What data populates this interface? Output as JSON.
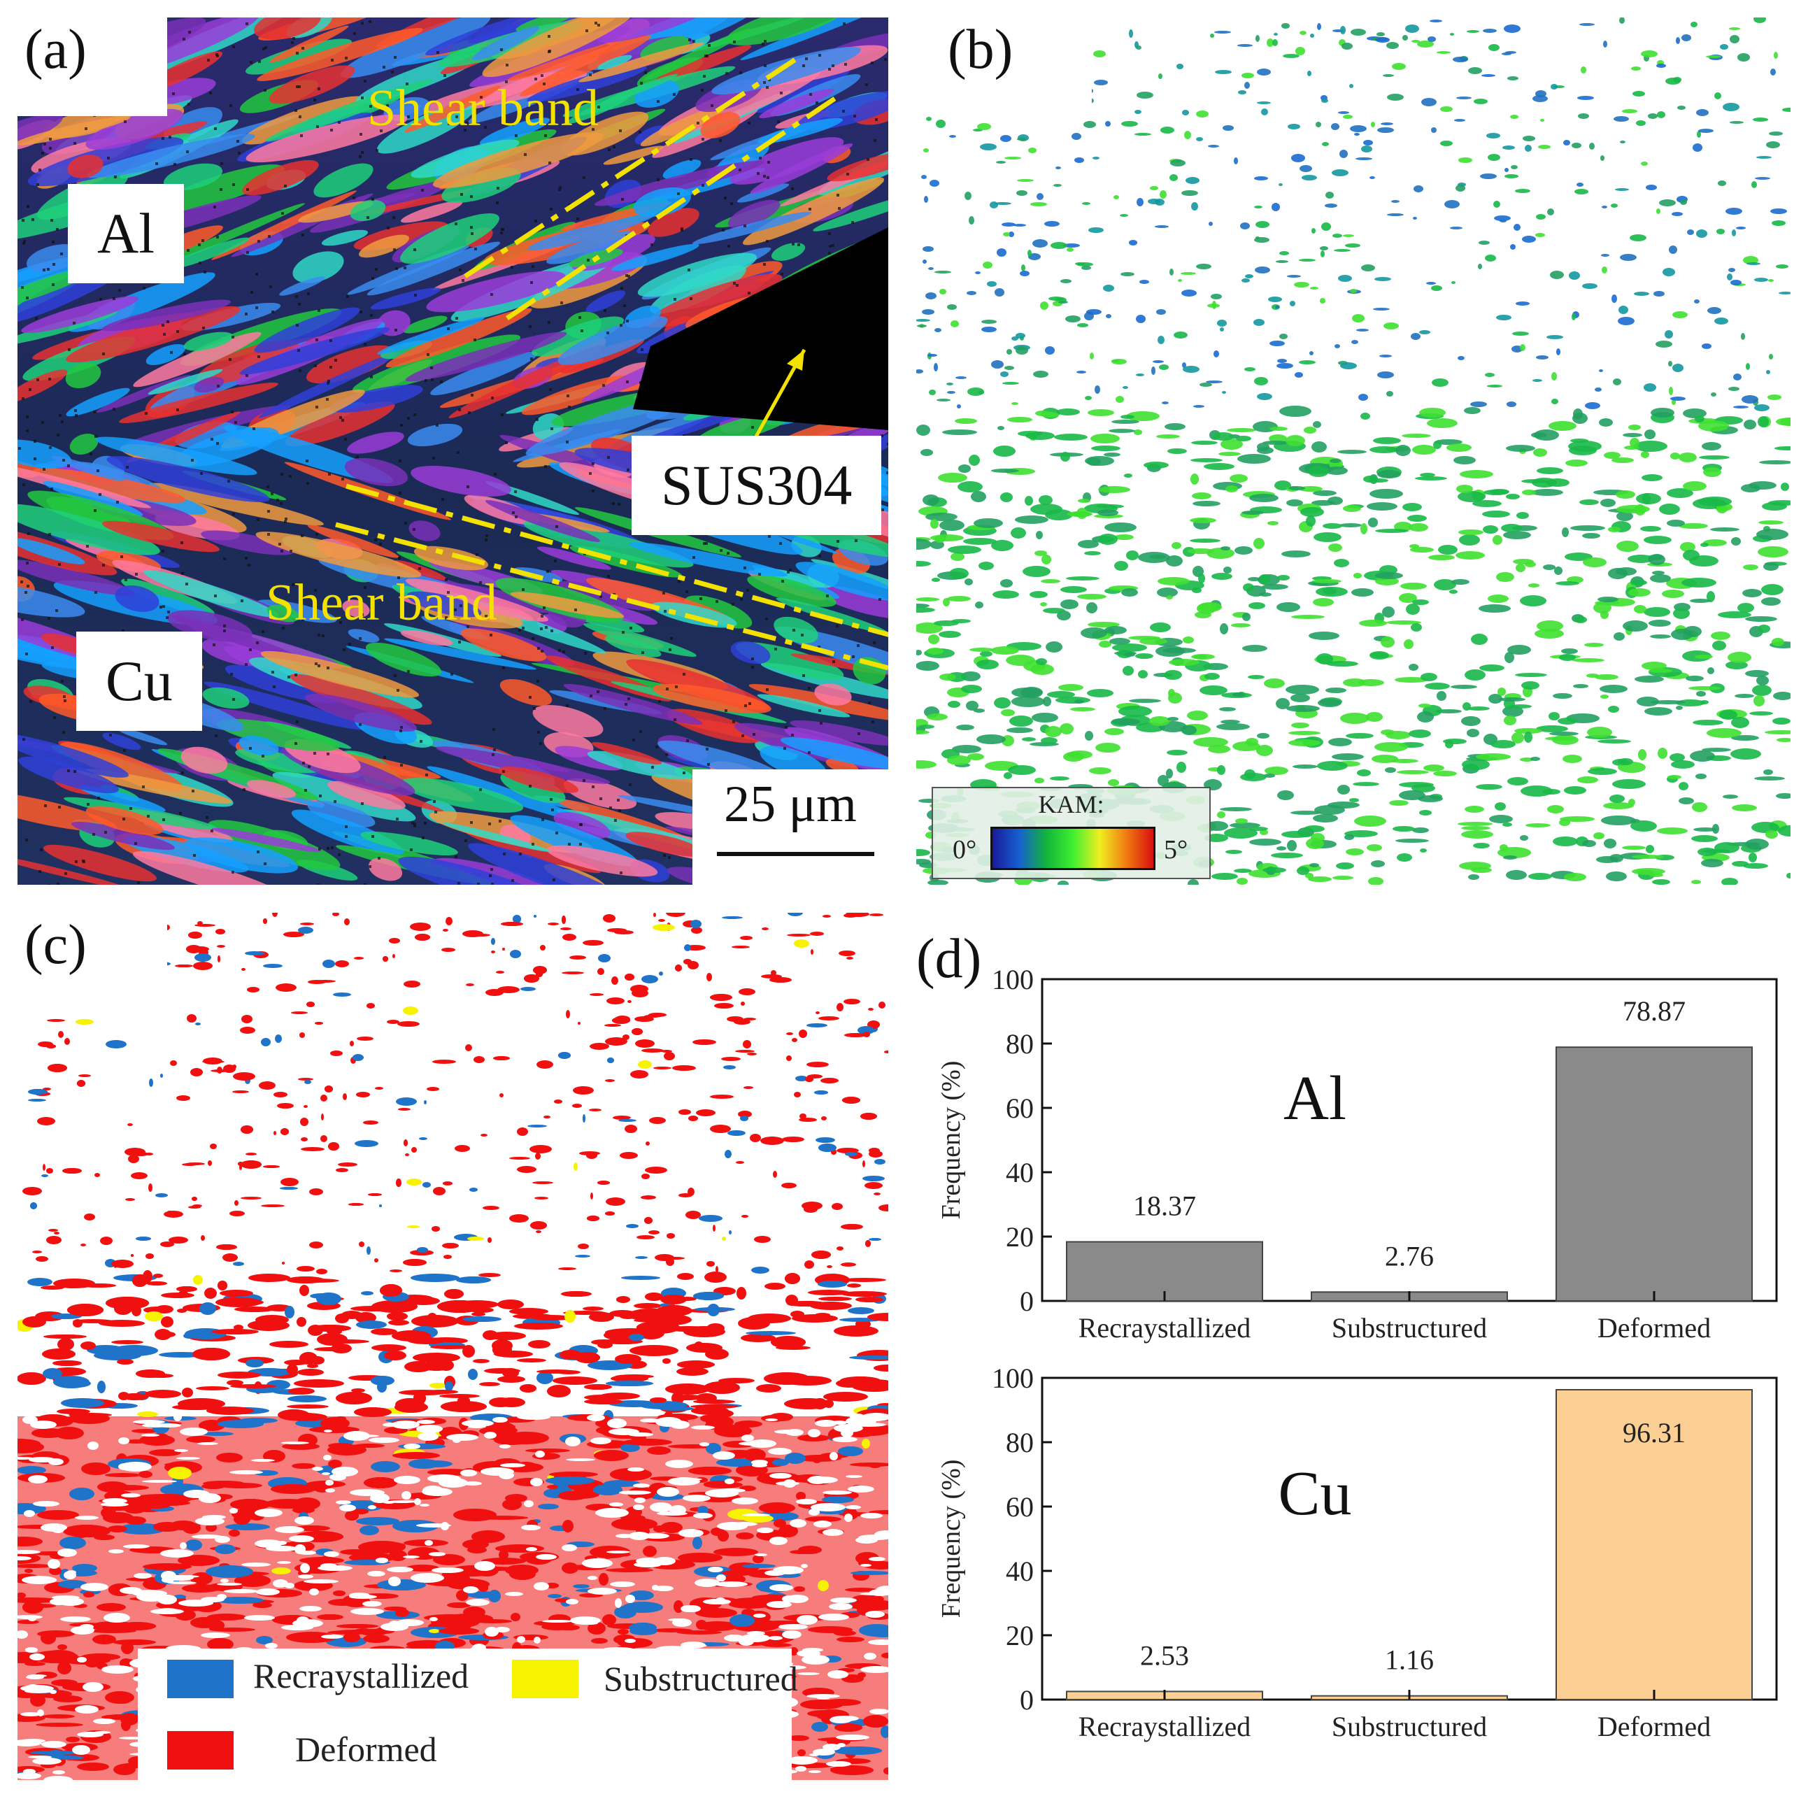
{
  "figure": {
    "panels": {
      "a": {
        "label": "(a)",
        "region_labels": {
          "al": "Al",
          "cu": "Cu",
          "sus": "SUS304"
        },
        "shear_band_top": "Shear band",
        "shear_band_bottom": "Shear band",
        "scale_bar": "25 μm"
      },
      "b": {
        "label": "(b)",
        "colorbar": {
          "title": "KAM:",
          "min": "0°",
          "max": "5°"
        }
      },
      "c": {
        "label": "(c)",
        "legend": {
          "recrystallized": "Recraystallized",
          "substructured": "Substructured",
          "deformed": "Deformed"
        },
        "colors": {
          "recrystallized": "#1f73c9",
          "substructured": "#f7f200",
          "deformed": "#f01010"
        }
      },
      "d": {
        "label": "(d)"
      }
    }
  },
  "chart_data": [
    {
      "type": "bar",
      "title": "Al",
      "categories": [
        "Recraystallized",
        "Substructured",
        "Deformed"
      ],
      "values": [
        18.37,
        2.76,
        78.87
      ],
      "value_labels": [
        "18.37",
        "2.76",
        "78.87"
      ],
      "ylabel": "Frequency (%)",
      "ylim": [
        0,
        100
      ],
      "yticks": [
        "0",
        "20",
        "40",
        "60",
        "80",
        "100"
      ],
      "bar_color": "#8a8a8a"
    },
    {
      "type": "bar",
      "title": "Cu",
      "categories": [
        "Recraystallized",
        "Substructured",
        "Deformed"
      ],
      "values": [
        2.53,
        1.16,
        96.31
      ],
      "value_labels": [
        "2.53",
        "1.16",
        "96.31"
      ],
      "ylabel": "Frequency (%)",
      "ylim": [
        0,
        100
      ],
      "yticks": [
        "0",
        "20",
        "40",
        "60",
        "80",
        "100"
      ],
      "bar_color": "#fccf94"
    }
  ]
}
